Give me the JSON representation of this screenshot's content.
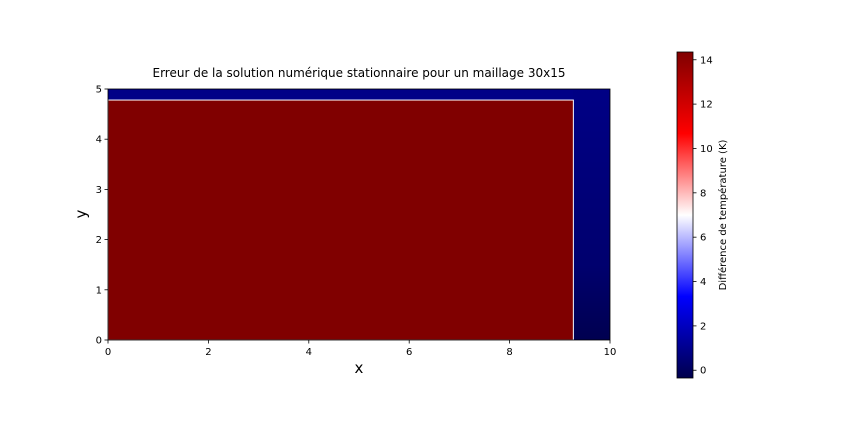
{
  "chart_data": {
    "type": "heatmap",
    "title": "Erreur de la solution numérique stationnaire pour un maillage 30x15",
    "xlabel": "x",
    "ylabel": "y",
    "xlim": [
      0,
      10
    ],
    "ylim": [
      0,
      5
    ],
    "xticks": [
      "0",
      "2",
      "4",
      "6",
      "8",
      "10"
    ],
    "yticks": [
      "0",
      "1",
      "2",
      "3",
      "4",
      "5"
    ],
    "interior_region": {
      "x": [
        0,
        9.27
      ],
      "y": [
        0,
        4.78
      ],
      "value": 14.3
    },
    "boundary_value_top": 0.0,
    "boundary_value_right_top": 0.0,
    "boundary_value_right_bottom": -0.4,
    "colorbar": {
      "label": "Différence de température (K)",
      "range": [
        -0.35,
        14.35
      ],
      "ticks": [
        "0",
        "2",
        "4",
        "6",
        "8",
        "10",
        "12",
        "14"
      ],
      "colormap": "seismic",
      "colors": [
        "#00004c",
        "#0000ff",
        "#ffffff",
        "#ff0000",
        "#800000"
      ]
    }
  }
}
